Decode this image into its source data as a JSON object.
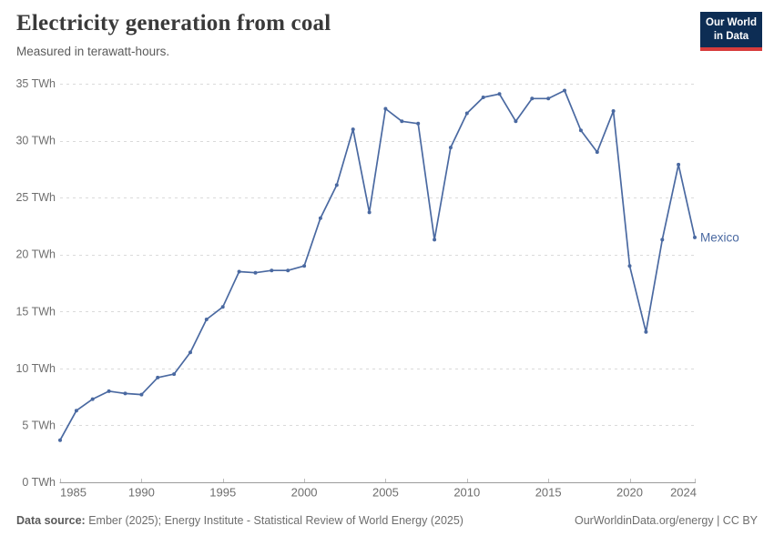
{
  "header": {
    "title": "Electricity generation from coal",
    "subtitle": "Measured in terawatt-hours."
  },
  "logo": {
    "line1": "Our World",
    "line2": "in Data",
    "bg_color": "#0d2d54",
    "accent_color": "#d73c3c"
  },
  "footer": {
    "source_label": "Data source:",
    "source_text": " Ember (2025); Energy Institute - Statistical Review of World Energy (2025)",
    "credit": "OurWorldinData.org/energy | CC BY"
  },
  "chart_data": {
    "type": "line",
    "title": "Electricity generation from coal",
    "subtitle": "Measured in terawatt-hours.",
    "xlabel": "",
    "ylabel": "",
    "xlim": [
      1985,
      2024
    ],
    "ylim": [
      0,
      35
    ],
    "grid": "horizontal-dashed",
    "legend_position": "end-of-line-label",
    "x_ticks": [
      1985,
      1990,
      1995,
      2000,
      2005,
      2010,
      2015,
      2020,
      2024
    ],
    "y_ticks": [
      0,
      5,
      10,
      15,
      20,
      25,
      30,
      35
    ],
    "y_tick_labels": [
      "0 TWh",
      "5 TWh",
      "10 TWh",
      "15 TWh",
      "20 TWh",
      "25 TWh",
      "30 TWh",
      "35 TWh"
    ],
    "years": [
      1985,
      1986,
      1987,
      1988,
      1989,
      1990,
      1991,
      1992,
      1993,
      1994,
      1995,
      1996,
      1997,
      1998,
      1999,
      2000,
      2001,
      2002,
      2003,
      2004,
      2005,
      2006,
      2007,
      2008,
      2009,
      2010,
      2011,
      2012,
      2013,
      2014,
      2015,
      2016,
      2017,
      2018,
      2019,
      2020,
      2021,
      2022,
      2023,
      2024
    ],
    "series": [
      {
        "name": "Mexico",
        "color": "#4a69a1",
        "values": [
          3.7,
          6.3,
          7.3,
          8.0,
          7.8,
          7.7,
          9.2,
          9.5,
          11.4,
          14.3,
          15.4,
          18.5,
          18.4,
          18.6,
          18.6,
          19.0,
          23.2,
          26.1,
          31.0,
          23.7,
          32.8,
          31.7,
          31.5,
          21.3,
          29.4,
          32.4,
          33.8,
          34.1,
          31.7,
          33.7,
          33.7,
          34.4,
          30.9,
          29.0,
          32.6,
          19.0,
          13.2,
          21.3,
          27.9,
          21.5
        ]
      }
    ]
  }
}
